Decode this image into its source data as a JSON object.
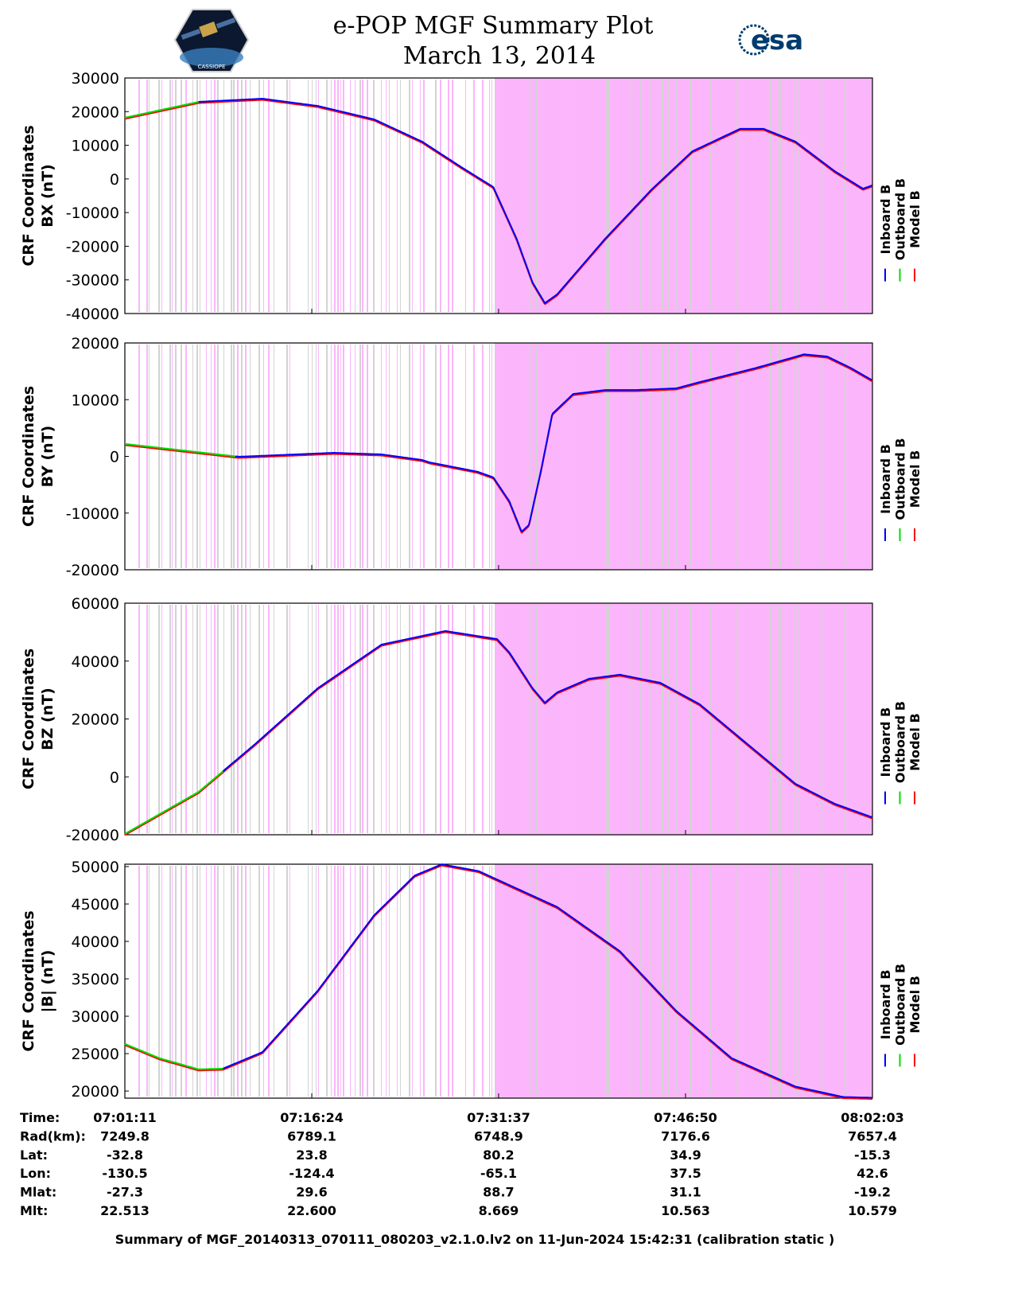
{
  "header": {
    "title": "e-POP MGF Summary Plot",
    "date": "March 13, 2014",
    "left_logo": "CASSIOPE",
    "right_logo": "esa"
  },
  "colors": {
    "inboard": "#0000ff",
    "outboard": "#00dd00",
    "model": "#ff0000",
    "coverage_pink": "#fbb6fb",
    "coverage_gray": "#d3d3d3"
  },
  "chart_data": [
    {
      "type": "line",
      "ylabel": [
        "CRF Coordinates",
        "BX (nT)"
      ],
      "ylim": [
        -40000,
        30000
      ],
      "yticks": [
        -40000,
        -30000,
        -20000,
        -10000,
        0,
        10000,
        20000,
        30000
      ],
      "ytick_labels": [
        "-40000",
        "-30000",
        "-20000",
        "-10000",
        "0",
        "10000",
        "20000",
        "30000"
      ],
      "inboard_start_min": 6,
      "x": [
        0,
        6.0,
        11.2,
        15.7,
        20.3,
        24.2,
        27.4,
        30.0,
        31.9,
        33.2,
        34.2,
        35.2,
        39.1,
        42.9,
        46.2,
        50.1,
        52.0,
        54.6,
        57.8,
        60.1,
        60.87
      ],
      "y": [
        18200,
        22900,
        23850,
        21700,
        17700,
        11100,
        3500,
        -2400,
        -17800,
        -30800,
        -36900,
        -34300,
        -17800,
        -3100,
        8200,
        14900,
        14900,
        11100,
        2300,
        -2900,
        -1900
      ],
      "legend": [
        "Inboard B",
        "Outboard B",
        "Model B"
      ]
    },
    {
      "type": "line",
      "ylabel": [
        "CRF Coordinates",
        "BY (nT)"
      ],
      "ylim": [
        -20000,
        20000
      ],
      "yticks": [
        -20000,
        -10000,
        0,
        10000,
        20000
      ],
      "ytick_labels": [
        "-20000",
        "-10000",
        "0",
        "10000",
        "20000"
      ],
      "inboard_start_min": 9,
      "x": [
        0,
        9.3,
        17.0,
        20.9,
        24.2,
        24.8,
        26.1,
        28.7,
        30.0,
        31.3,
        32.3,
        32.9,
        33.9,
        34.8,
        36.5,
        39.1,
        41.6,
        44.9,
        46.8,
        51.4,
        55.3,
        57.2,
        59.1,
        60.87
      ],
      "y": [
        2200,
        -70,
        630,
        350,
        -630,
        -1050,
        -1600,
        -2700,
        -3700,
        -7900,
        -13300,
        -12100,
        -2300,
        7500,
        11000,
        11700,
        11700,
        12000,
        13100,
        15600,
        18000,
        17600,
        15600,
        13400
      ],
      "legend": [
        "Inboard B",
        "Outboard B",
        "Model B"
      ]
    },
    {
      "type": "line",
      "ylabel": [
        "CRF Coordinates",
        "BZ (nT)"
      ],
      "ylim": [
        -20000,
        60000
      ],
      "yticks": [
        -20000,
        0,
        20000,
        40000,
        60000
      ],
      "ytick_labels": [
        "-20000",
        "0",
        "20000",
        "40000",
        "60000"
      ],
      "inboard_start_min": 8,
      "x": [
        0,
        6.0,
        10.6,
        15.7,
        20.9,
        26.1,
        30.3,
        31.3,
        33.2,
        34.2,
        35.2,
        37.8,
        40.3,
        43.6,
        46.8,
        50.7,
        54.6,
        57.8,
        60.87
      ],
      "y": [
        -19700,
        -5200,
        11300,
        30600,
        45700,
        50400,
        47600,
        43000,
        30600,
        25600,
        29200,
        33900,
        35300,
        32500,
        25100,
        11300,
        -2400,
        -9300,
        -14000
      ],
      "legend": [
        "Inboard B",
        "Outboard B",
        "Model B"
      ]
    },
    {
      "type": "line",
      "ylabel": [
        "CRF Coordinates",
        "|B| (nT)"
      ],
      "ylim": [
        19050,
        50320
      ],
      "yticks": [
        20000,
        25000,
        30000,
        35000,
        40000,
        45000,
        50000
      ],
      "ytick_labels": [
        "20000",
        "25000",
        "30000",
        "35000",
        "40000",
        "45000",
        "50000"
      ],
      "inboard_start_min": 8,
      "x": [
        0,
        2.8,
        6.0,
        8.0,
        11.2,
        15.7,
        20.3,
        23.6,
        25.8,
        28.8,
        35.2,
        40.3,
        44.9,
        49.4,
        54.6,
        58.5,
        60.87
      ],
      "y": [
        26300,
        24400,
        22900,
        23000,
        25200,
        33400,
        43500,
        48800,
        50300,
        49400,
        44600,
        38700,
        30700,
        24400,
        20600,
        19200,
        19100
      ],
      "legend": [
        "Inboard B",
        "Outboard B",
        "Model B"
      ]
    }
  ],
  "x_axis": {
    "range_min": [
      0,
      60.87
    ],
    "ticks_min": [
      0,
      15.22,
      30.43,
      45.65,
      60.87
    ]
  },
  "table": {
    "rows": [
      {
        "label": "Time:",
        "values": [
          "07:01:11",
          "07:16:24",
          "07:31:37",
          "07:46:50",
          "08:02:03"
        ]
      },
      {
        "label": "Rad(km):",
        "values": [
          "7249.8",
          "6789.1",
          "6748.9",
          "7176.6",
          "7657.4"
        ]
      },
      {
        "label": "Lat:",
        "values": [
          "-32.8",
          "23.8",
          "80.2",
          "34.9",
          "-15.3"
        ]
      },
      {
        "label": "Lon:",
        "values": [
          "-130.5",
          "-124.4",
          "-65.1",
          "37.5",
          "42.6"
        ]
      },
      {
        "label": "Mlat:",
        "values": [
          "-27.3",
          "29.6",
          "88.7",
          "31.1",
          "-19.2"
        ]
      },
      {
        "label": "Mlt:",
        "values": [
          "22.513",
          "22.600",
          "8.669",
          "10.563",
          "10.579"
        ]
      }
    ]
  },
  "footer": "Summary of MGF_20140313_070111_080203_v2.1.0.lv2 on 11-Jun-2024 15:42:31 (calibration static )"
}
